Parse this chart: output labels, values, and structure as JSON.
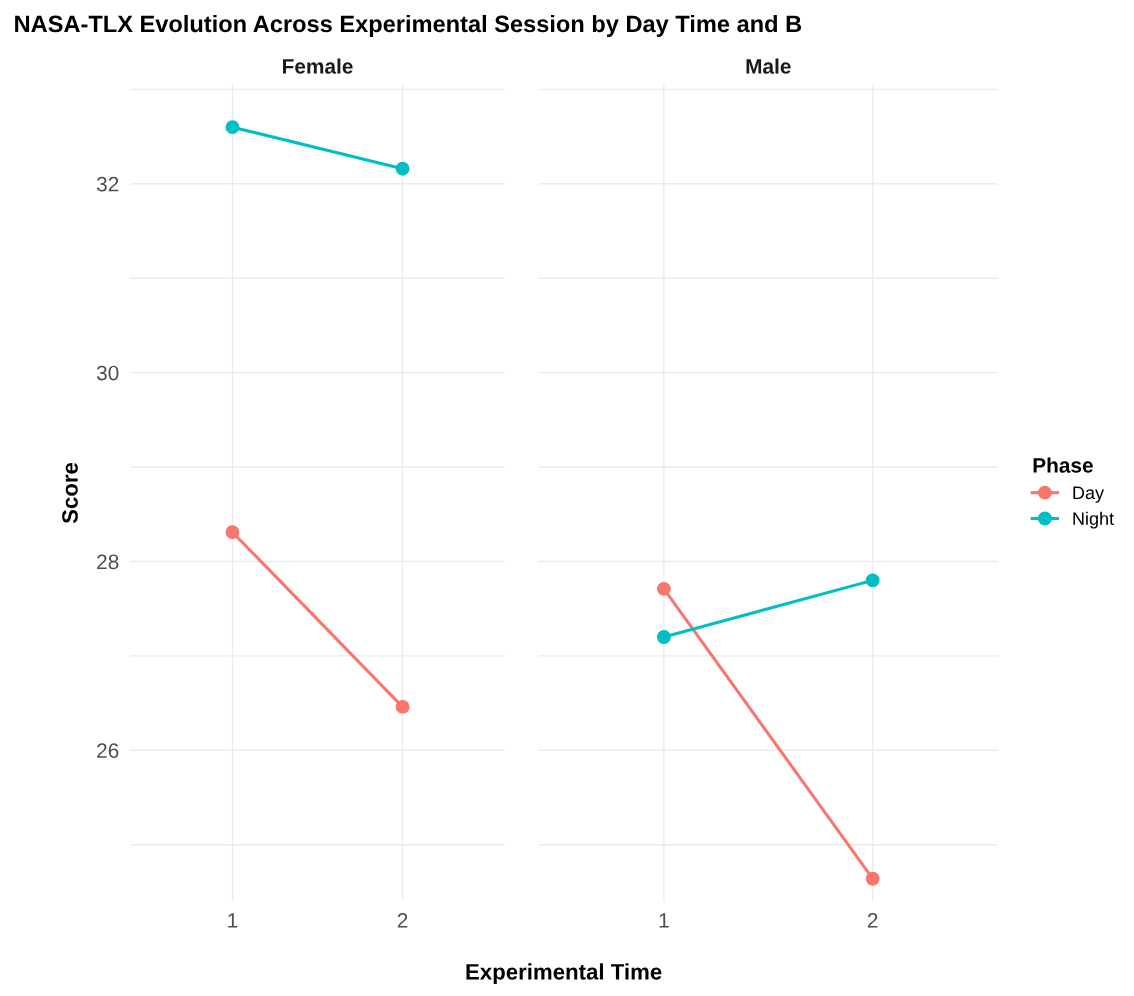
{
  "chart_data": [
    {
      "type": "line",
      "title": "NASA-TLX Evolution Across Experimental Session by Day Time and B",
      "subtitle": "Female",
      "xlabel": "Experimental Time",
      "ylabel": "Score",
      "categories": [
        "1",
        "2"
      ],
      "ylim": [
        24.4,
        33.05
      ],
      "yticks": [
        {
          "value": 25,
          "label": null
        },
        26,
        {
          "value": 27,
          "label": null
        },
        28,
        {
          "value": 29,
          "label": null
        },
        30,
        {
          "value": 31,
          "label": null
        },
        32,
        {
          "value": 33,
          "label": null
        }
      ],
      "grid": true,
      "marker": "circle",
      "line_style": "solid",
      "series": [
        {
          "color": "#f8766d",
          "values": [
            28.31,
            26.46
          ]
        },
        {
          "color": "#00bfc4",
          "values": [
            32.6,
            32.16
          ]
        }
      ]
    },
    {
      "type": "line",
      "subtitle": "Male",
      "categories": [
        "1",
        "2"
      ],
      "ylim": [
        24.4,
        33.05
      ],
      "yticks": [
        {
          "value": 25,
          "label": null
        },
        26,
        {
          "value": 27,
          "label": null
        },
        28,
        {
          "value": 29,
          "label": null
        },
        30,
        {
          "value": 31,
          "label": null
        },
        32,
        {
          "value": 33,
          "label": null
        }
      ],
      "tick_labels": "x",
      "grid": true,
      "marker": "circle",
      "line_style": "solid",
      "legend": "right",
      "legend_title": "Phase",
      "series": [
        {
          "name": "Day",
          "color": "#f8766d",
          "values": [
            27.71,
            24.64
          ]
        },
        {
          "name": "Night",
          "color": "#00bfc4",
          "values": [
            27.2,
            27.8
          ]
        }
      ]
    }
  ]
}
